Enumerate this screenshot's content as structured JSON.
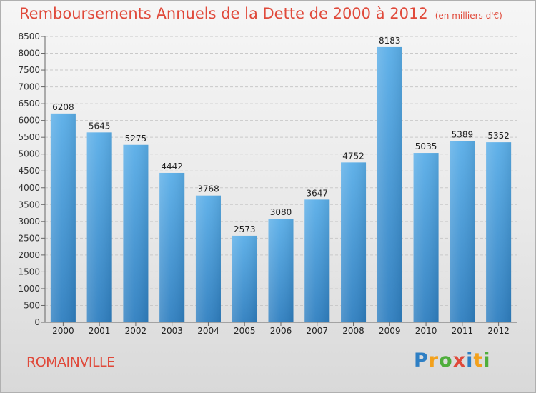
{
  "title": "Remboursements Annuels de la Dette de 2000 à 2012",
  "subtitle": "(en milliers d'€)",
  "city": "ROMAINVILLE",
  "logo_text": "Proxiti",
  "colors": {
    "accent": "#e0493a",
    "bar_top": "#5aaee8",
    "bar_bottom": "#2f7fc0"
  },
  "chart_data": {
    "type": "bar",
    "title": "Remboursements Annuels de la Dette de 2000 à 2012",
    "xlabel": "",
    "ylabel": "",
    "categories": [
      "2000",
      "2001",
      "2002",
      "2003",
      "2004",
      "2005",
      "2006",
      "2007",
      "2008",
      "2009",
      "2010",
      "2011",
      "2012"
    ],
    "values": [
      6208,
      5645,
      5275,
      4442,
      3768,
      2573,
      3080,
      3647,
      4752,
      8183,
      5035,
      5389,
      5352
    ],
    "ylim": [
      0,
      8500
    ],
    "yticks": [
      0,
      500,
      1000,
      1500,
      2000,
      2500,
      3000,
      3500,
      4000,
      4500,
      5000,
      5500,
      6000,
      6500,
      7000,
      7500,
      8000,
      8500
    ],
    "grid": true,
    "data_labels": true,
    "legend": "none"
  }
}
